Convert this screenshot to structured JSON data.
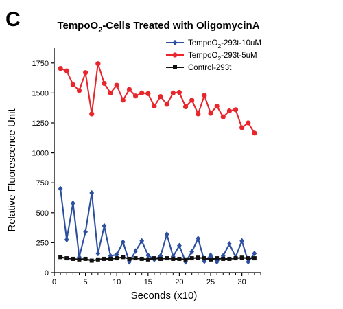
{
  "panel_letter": "C",
  "chart_data": {
    "type": "line",
    "title": "TempoO₂-Cells Treated with OligomycinA",
    "title_parts": {
      "before": "TempoO",
      "sub": "2",
      "after": "-Cells Treated with OligomycinA"
    },
    "xlabel": "Seconds (x10)",
    "ylabel": "Relative Fluorescence Unit",
    "xlim": [
      0,
      33
    ],
    "ylim": [
      0,
      1875
    ],
    "xticks": [
      0,
      5,
      10,
      15,
      20,
      25,
      30
    ],
    "yticks": [
      0,
      250,
      500,
      750,
      1000,
      1250,
      1500,
      1750
    ],
    "legend_position": "top-right",
    "x": [
      1,
      2,
      3,
      4,
      5,
      6,
      7,
      8,
      9,
      10,
      11,
      12,
      13,
      14,
      15,
      16,
      17,
      18,
      19,
      20,
      21,
      22,
      23,
      24,
      25,
      26,
      27,
      28,
      29,
      30,
      31,
      32
    ],
    "series": [
      {
        "name": "TempoO₂-293t-10uM",
        "name_parts": {
          "before": "TempoO",
          "sub": "2",
          "after": "-293t-10uM"
        },
        "color": "#2d4fa0",
        "marker": "diamond",
        "values": [
          700,
          275,
          580,
          130,
          340,
          665,
          160,
          390,
          140,
          150,
          255,
          90,
          180,
          265,
          145,
          110,
          140,
          320,
          135,
          225,
          90,
          175,
          285,
          95,
          145,
          90,
          140,
          240,
          130,
          265,
          90,
          160
        ]
      },
      {
        "name": "TempoO₂-293t-5uM",
        "name_parts": {
          "before": "TempoO",
          "sub": "2",
          "after": "-293t-5uM"
        },
        "color": "#e8262b",
        "marker": "circle",
        "values": [
          1705,
          1685,
          1570,
          1520,
          1670,
          1325,
          1745,
          1580,
          1500,
          1565,
          1440,
          1530,
          1475,
          1500,
          1495,
          1390,
          1470,
          1405,
          1500,
          1505,
          1385,
          1440,
          1325,
          1480,
          1330,
          1390,
          1300,
          1350,
          1360,
          1210,
          1250,
          1165
        ]
      },
      {
        "name": "Control-293t",
        "name_parts": {
          "before": "Control-293t",
          "sub": "",
          "after": ""
        },
        "color": "#111111",
        "marker": "square",
        "values": [
          130,
          120,
          115,
          110,
          115,
          100,
          110,
          115,
          115,
          120,
          130,
          115,
          120,
          115,
          110,
          120,
          115,
          120,
          115,
          115,
          110,
          120,
          125,
          120,
          110,
          120,
          115,
          115,
          120,
          125,
          120,
          120
        ]
      }
    ]
  }
}
